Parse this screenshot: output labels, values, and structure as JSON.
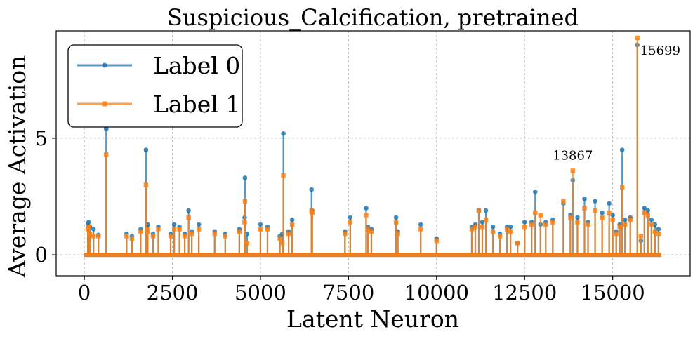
{
  "chart_data": {
    "type": "line",
    "title": "Suspicious_Calcification, pretrained",
    "xlabel": "Latent Neuron",
    "ylabel": "Average Activation",
    "xlim": [
      -800,
      17200
    ],
    "ylim": [
      -0.9,
      9.6
    ],
    "xticks": [
      0,
      2500,
      5000,
      7500,
      10000,
      12500,
      15000
    ],
    "yticks": [
      0,
      5
    ],
    "grid": true,
    "legend_position": "top-left",
    "series": [
      {
        "name": "Label 0",
        "color": "#1f77b4",
        "marker": "circle",
        "x": [
          100,
          120,
          160,
          260,
          400,
          620,
          1200,
          1350,
          1600,
          1750,
          1780,
          1800,
          1950,
          2100,
          2450,
          2550,
          2700,
          2850,
          2960,
          3050,
          3250,
          3700,
          4000,
          4400,
          4550,
          4560,
          4620,
          5000,
          5200,
          5550,
          5620,
          5650,
          5800,
          5900,
          6450,
          6470,
          7400,
          7550,
          8000,
          8050,
          8150,
          8850,
          8900,
          9550,
          10000,
          11000,
          11100,
          11200,
          11300,
          11400,
          11600,
          11800,
          12000,
          12100,
          12300,
          12500,
          12700,
          12800,
          12950,
          13100,
          13300,
          13600,
          13800,
          13867,
          14000,
          14200,
          14300,
          14500,
          14700,
          14900,
          15000,
          15100,
          15200,
          15270,
          15350,
          15500,
          15699,
          15800,
          15900,
          16000,
          16100,
          16200,
          16300
        ],
        "values": [
          1.3,
          1.4,
          1.2,
          1.1,
          0.85,
          5.4,
          0.9,
          0.8,
          1.1,
          4.5,
          1.2,
          1.3,
          0.9,
          1.2,
          0.9,
          1.3,
          1.2,
          0.9,
          1.9,
          1.0,
          1.3,
          1.0,
          0.9,
          1.1,
          1.6,
          3.3,
          0.9,
          1.3,
          1.2,
          0.8,
          0.9,
          5.2,
          1.0,
          1.5,
          2.8,
          1.9,
          1.0,
          1.6,
          2.0,
          1.2,
          1.1,
          1.6,
          1.0,
          1.3,
          0.7,
          1.2,
          1.3,
          1.9,
          1.4,
          1.9,
          1.2,
          0.9,
          1.2,
          1.2,
          0.5,
          1.4,
          1.4,
          2.7,
          1.3,
          1.4,
          1.5,
          2.2,
          1.7,
          3.2,
          1.6,
          2.4,
          1.4,
          2.3,
          1.8,
          2.2,
          1.7,
          1.0,
          1.3,
          4.5,
          1.5,
          1.6,
          9.0,
          0.6,
          2.0,
          1.9,
          1.5,
          1.3,
          1.1
        ]
      },
      {
        "name": "Label 1",
        "color": "#ff7f0e",
        "marker": "square",
        "x": [
          100,
          120,
          160,
          260,
          400,
          620,
          1200,
          1350,
          1600,
          1750,
          1780,
          1800,
          1950,
          2100,
          2450,
          2550,
          2700,
          2850,
          2960,
          3050,
          3250,
          3700,
          4000,
          4400,
          4550,
          4560,
          4620,
          5000,
          5200,
          5550,
          5620,
          5650,
          5800,
          5900,
          6450,
          6470,
          7400,
          7550,
          8000,
          8050,
          8150,
          8850,
          8900,
          9550,
          10000,
          11000,
          11100,
          11200,
          11300,
          11400,
          11600,
          11800,
          12000,
          12100,
          12300,
          12500,
          12700,
          12800,
          12950,
          13100,
          13300,
          13600,
          13800,
          13867,
          14000,
          14200,
          14300,
          14500,
          14700,
          14900,
          15000,
          15100,
          15200,
          15270,
          15350,
          15500,
          15699,
          15800,
          15900,
          16000,
          16100,
          16200,
          16300
        ],
        "values": [
          1.1,
          1.2,
          0.9,
          0.8,
          0.8,
          4.3,
          0.8,
          0.7,
          1.0,
          3.0,
          1.1,
          1.0,
          0.8,
          1.1,
          0.8,
          1.1,
          1.1,
          0.8,
          1.6,
          0.9,
          1.1,
          0.9,
          0.8,
          1.0,
          1.4,
          2.3,
          0.5,
          1.1,
          1.1,
          0.7,
          0.5,
          3.4,
          0.9,
          1.3,
          1.9,
          1.8,
          0.9,
          1.4,
          1.7,
          1.1,
          1.0,
          1.4,
          0.9,
          1.1,
          0.6,
          1.1,
          1.2,
          1.9,
          1.2,
          1.5,
          1.0,
          0.8,
          1.1,
          1.0,
          0.5,
          1.2,
          1.3,
          1.8,
          1.7,
          1.3,
          1.4,
          2.3,
          1.6,
          3.6,
          1.4,
          2.0,
          1.3,
          1.9,
          1.6,
          1.8,
          1.5,
          0.9,
          1.2,
          2.9,
          1.3,
          1.5,
          9.3,
          0.8,
          1.8,
          1.7,
          1.3,
          1.0,
          0.9
        ]
      }
    ],
    "annotations": [
      {
        "text": "15699",
        "x": 15699,
        "y": 9.0
      },
      {
        "text": "13867",
        "x": 13867,
        "y": 3.6
      }
    ]
  }
}
